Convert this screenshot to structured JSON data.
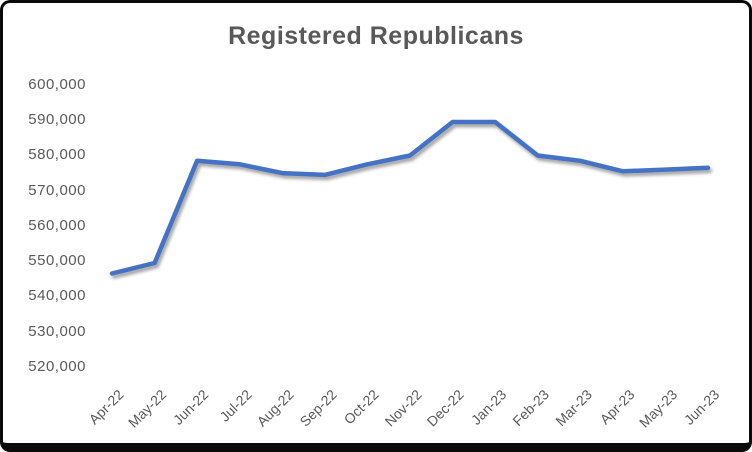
{
  "window": {
    "background_color": "#ffffff",
    "frame_border_color": "#0a0a0a"
  },
  "chart_data": {
    "type": "line",
    "title": "Registered Republicans",
    "categories": [
      "Apr-22",
      "May-22",
      "Jun-22",
      "Jul-22",
      "Aug-22",
      "Sep-22",
      "Oct-22",
      "Nov-22",
      "Dec-22",
      "Jan-23",
      "Feb-23",
      "Mar-23",
      "Apr-23",
      "May-23",
      "Jun-23"
    ],
    "series": [
      {
        "name": "Registered Republicans",
        "values": [
          546500,
          549500,
          578500,
          577500,
          575000,
          574500,
          577500,
          580000,
          589500,
          589500,
          580000,
          578500,
          575500,
          576000,
          576500
        ]
      }
    ],
    "xlabel": "",
    "ylabel": "",
    "ylim": [
      520000,
      600000
    ],
    "y_tick_step": 10000,
    "y_tick_labels": [
      "600,000",
      "590,000",
      "580,000",
      "570,000",
      "560,000",
      "550,000",
      "540,000",
      "530,000",
      "520,000"
    ],
    "grid": false,
    "legend_position": "none",
    "line_color": "#4472C4",
    "text_color": "#595959"
  }
}
